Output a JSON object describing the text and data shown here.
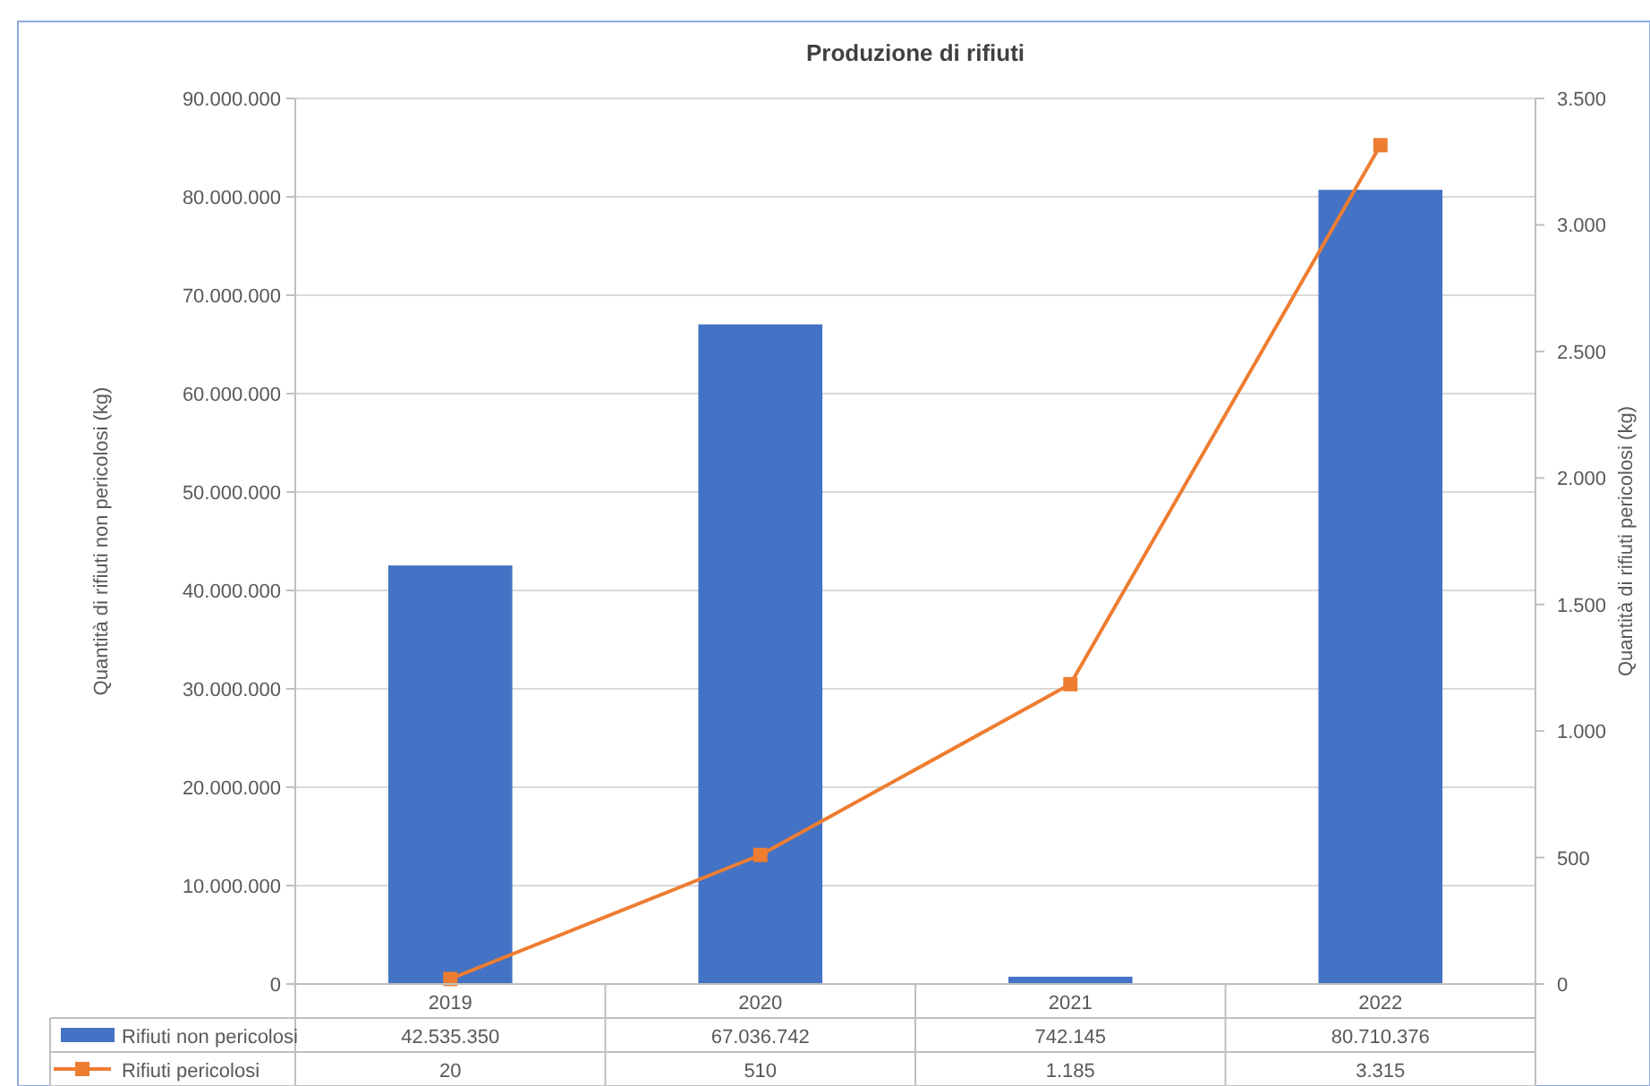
{
  "chart_data": {
    "type": "bar",
    "title": "Produzione di rifiuti",
    "ylabel": "Quantità di rifiuti non pericolosi (kg)",
    "y2label": "Quantità di rifiuti pericolosi (kg)",
    "categories": [
      "2019",
      "2020",
      "2021",
      "2022"
    ],
    "series": [
      {
        "name": "Rifiuti non pericolosi",
        "color": "#4472c4",
        "values": [
          42535350,
          67036742,
          742145,
          80710376
        ],
        "value_labels": [
          "42.535.350",
          "67.036.742",
          "742.145",
          "80.710.376"
        ]
      },
      {
        "name": "Rifiuti pericolosi",
        "type": "line",
        "axis": "y2",
        "color": "#ed7d31",
        "marker": "square",
        "values": [
          20,
          510,
          1185,
          3315
        ],
        "value_labels": [
          "20",
          "510",
          "1.185",
          "3.315"
        ]
      }
    ],
    "ylim": [
      0,
      90000000
    ],
    "yticks": [
      0,
      {
        "value": 10000000,
        "label": "10.000.000"
      },
      {
        "value": 20000000,
        "label": "20.000.000"
      },
      {
        "value": 30000000,
        "label": "30.000.000"
      },
      {
        "value": 40000000,
        "label": "40.000.000"
      },
      {
        "value": 50000000,
        "label": "50.000.000"
      },
      {
        "value": 60000000,
        "label": "60.000.000"
      },
      {
        "value": 70000000,
        "label": "70.000.000"
      },
      {
        "value": 80000000,
        "label": "80.000.000"
      },
      {
        "value": 90000000,
        "label": "90.000.000"
      }
    ],
    "y2lim": [
      0,
      3500
    ],
    "y2ticks": [
      0,
      500,
      {
        "value": 1000,
        "label": "1.000"
      },
      {
        "value": 1500,
        "label": "1.500"
      },
      {
        "value": 2000,
        "label": "2.000"
      },
      {
        "value": 2500,
        "label": "2.500"
      },
      {
        "value": 3000,
        "label": "3.000"
      },
      {
        "value": 3500,
        "label": "3.500"
      }
    ],
    "grid": "y",
    "legend": "bottom"
  }
}
